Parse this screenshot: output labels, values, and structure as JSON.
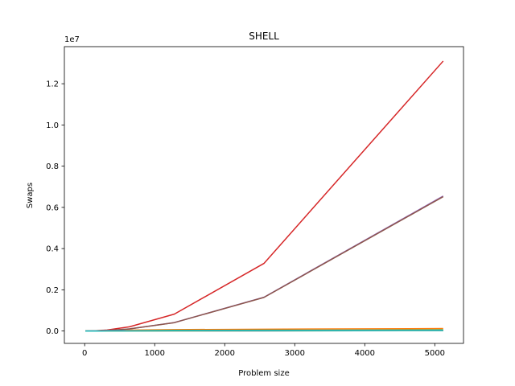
{
  "chart_data": {
    "type": "line",
    "title": "SHELL",
    "xlabel": "Problem size",
    "ylabel": "Swaps",
    "y_offset_label": "1e7",
    "xlim": [
      -290,
      5410
    ],
    "ylim": [
      -600000,
      13800000
    ],
    "grid": false,
    "legend": "none",
    "x_ticks": [
      0,
      1000,
      2000,
      3000,
      4000,
      5000
    ],
    "x_tick_labels": [
      "0",
      "1000",
      "2000",
      "3000",
      "4000",
      "5000"
    ],
    "y_ticks": [
      0,
      2000000,
      4000000,
      6000000,
      8000000,
      10000000,
      12000000
    ],
    "y_tick_labels": [
      "0.0",
      "0.2",
      "0.4",
      "0.6",
      "0.8",
      "1.0",
      "1.2"
    ],
    "x": [
      10,
      20,
      40,
      80,
      160,
      320,
      640,
      1280,
      2560,
      5120
    ],
    "series": [
      {
        "color": "#1f77b4",
        "values": [
          5,
          15,
          40,
          100,
          250,
          600,
          1400,
          3200,
          7200,
          16000
        ]
      },
      {
        "color": "#ff7f0e",
        "values": [
          40,
          150,
          600,
          2300,
          9000,
          25000,
          45000,
          68000,
          90000,
          120000
        ]
      },
      {
        "color": "#2ca02c",
        "values": [
          20,
          80,
          300,
          1000,
          3500,
          9000,
          17000,
          27000,
          38000,
          52000
        ]
      },
      {
        "color": "#d62728",
        "values": [
          50,
          200,
          800,
          3200,
          13000,
          51000,
          205000,
          820000,
          3280000,
          13100000
        ]
      },
      {
        "color": "#9467bd",
        "values": [
          25,
          100,
          400,
          1600,
          6400,
          25600,
          102000,
          410000,
          1640000,
          6550000
        ]
      },
      {
        "color": "#8c564b",
        "values": [
          24,
          98,
          395,
          1590,
          6350,
          25400,
          101500,
          407000,
          1630000,
          6520000
        ]
      },
      {
        "color": "#e377c2",
        "values": [
          10,
          30,
          80,
          200,
          500,
          1100,
          2400,
          5000,
          10500,
          22000
        ]
      },
      {
        "color": "#7f7f7f",
        "values": [
          15,
          50,
          160,
          480,
          1400,
          3800,
          9000,
          16000,
          24000,
          33000
        ]
      },
      {
        "color": "#bcbd22",
        "values": [
          8,
          25,
          70,
          180,
          450,
          1000,
          2200,
          4600,
          9500,
          19500
        ]
      },
      {
        "color": "#17becf",
        "values": [
          12,
          40,
          120,
          350,
          1000,
          2700,
          6500,
          12500,
          19000,
          26000
        ]
      }
    ]
  }
}
